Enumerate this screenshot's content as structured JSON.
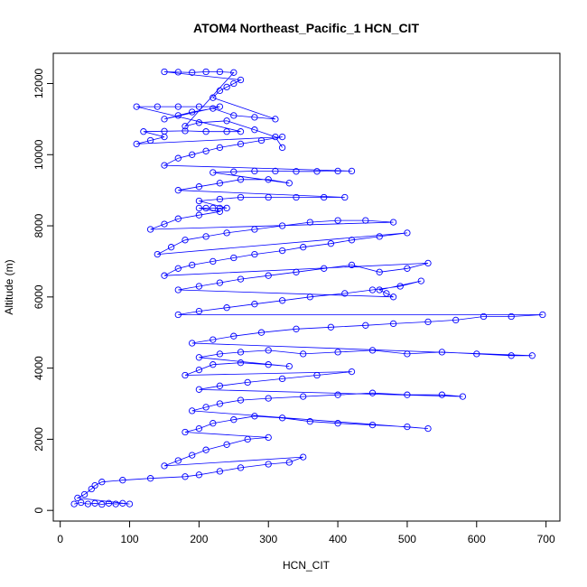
{
  "chart_data": {
    "type": "scatter",
    "title": "ATOM4 Northeast_Pacific_1 HCN_CIT",
    "xlabel": "HCN_CIT",
    "ylabel": "Altitude (m)",
    "xlim": [
      -10,
      720
    ],
    "ylim": [
      -300,
      12850
    ],
    "xticks": [
      0,
      100,
      200,
      300,
      400,
      500,
      600,
      700
    ],
    "yticks": [
      0,
      2000,
      4000,
      6000,
      8000,
      10000,
      12000
    ],
    "grid": false,
    "legend": "none",
    "colors": {
      "series": "#0000ff",
      "axis": "#000000",
      "background": "#ffffff"
    },
    "series": [
      {
        "marker": "open-circle",
        "line": true,
        "points": [
          [
            20,
            180
          ],
          [
            30,
            220
          ],
          [
            40,
            180
          ],
          [
            50,
            200
          ],
          [
            60,
            170
          ],
          [
            70,
            200
          ],
          [
            80,
            180
          ],
          [
            90,
            200
          ],
          [
            100,
            180
          ],
          [
            25,
            350
          ],
          [
            35,
            450
          ],
          [
            45,
            600
          ],
          [
            50,
            700
          ],
          [
            60,
            800
          ],
          [
            90,
            850
          ],
          [
            130,
            900
          ],
          [
            180,
            950
          ],
          [
            200,
            1000
          ],
          [
            230,
            1100
          ],
          [
            260,
            1200
          ],
          [
            300,
            1300
          ],
          [
            330,
            1350
          ],
          [
            350,
            1500
          ],
          [
            150,
            1250
          ],
          [
            170,
            1400
          ],
          [
            190,
            1550
          ],
          [
            210,
            1700
          ],
          [
            240,
            1850
          ],
          [
            270,
            2000
          ],
          [
            300,
            2050
          ],
          [
            180,
            2200
          ],
          [
            200,
            2300
          ],
          [
            220,
            2450
          ],
          [
            250,
            2550
          ],
          [
            280,
            2650
          ],
          [
            320,
            2600
          ],
          [
            360,
            2500
          ],
          [
            400,
            2450
          ],
          [
            450,
            2400
          ],
          [
            500,
            2350
          ],
          [
            530,
            2300
          ],
          [
            190,
            2800
          ],
          [
            210,
            2900
          ],
          [
            230,
            3000
          ],
          [
            260,
            3100
          ],
          [
            300,
            3150
          ],
          [
            350,
            3200
          ],
          [
            400,
            3250
          ],
          [
            450,
            3300
          ],
          [
            500,
            3250
          ],
          [
            550,
            3250
          ],
          [
            580,
            3200
          ],
          [
            200,
            3400
          ],
          [
            230,
            3500
          ],
          [
            270,
            3600
          ],
          [
            320,
            3700
          ],
          [
            370,
            3800
          ],
          [
            420,
            3900
          ],
          [
            180,
            3800
          ],
          [
            200,
            3950
          ],
          [
            220,
            4100
          ],
          [
            260,
            4150
          ],
          [
            300,
            4100
          ],
          [
            330,
            4050
          ],
          [
            200,
            4300
          ],
          [
            230,
            4400
          ],
          [
            260,
            4450
          ],
          [
            300,
            4500
          ],
          [
            350,
            4400
          ],
          [
            400,
            4450
          ],
          [
            450,
            4500
          ],
          [
            500,
            4400
          ],
          [
            550,
            4450
          ],
          [
            600,
            4400
          ],
          [
            650,
            4350
          ],
          [
            680,
            4350
          ],
          [
            190,
            4700
          ],
          [
            220,
            4800
          ],
          [
            250,
            4900
          ],
          [
            290,
            5000
          ],
          [
            340,
            5100
          ],
          [
            390,
            5150
          ],
          [
            440,
            5200
          ],
          [
            480,
            5250
          ],
          [
            530,
            5300
          ],
          [
            570,
            5350
          ],
          [
            610,
            5450
          ],
          [
            650,
            5450
          ],
          [
            695,
            5500
          ],
          [
            170,
            5500
          ],
          [
            200,
            5600
          ],
          [
            240,
            5700
          ],
          [
            280,
            5800
          ],
          [
            320,
            5900
          ],
          [
            360,
            6000
          ],
          [
            410,
            6100
          ],
          [
            450,
            6200
          ],
          [
            490,
            6300
          ],
          [
            520,
            6450
          ],
          [
            460,
            6200
          ],
          [
            470,
            6100
          ],
          [
            480,
            6000
          ],
          [
            170,
            6200
          ],
          [
            200,
            6300
          ],
          [
            230,
            6400
          ],
          [
            260,
            6500
          ],
          [
            300,
            6600
          ],
          [
            340,
            6700
          ],
          [
            380,
            6800
          ],
          [
            420,
            6900
          ],
          [
            460,
            6700
          ],
          [
            500,
            6800
          ],
          [
            530,
            6950
          ],
          [
            150,
            6600
          ],
          [
            170,
            6800
          ],
          [
            190,
            6900
          ],
          [
            220,
            7000
          ],
          [
            250,
            7100
          ],
          [
            280,
            7200
          ],
          [
            320,
            7300
          ],
          [
            350,
            7400
          ],
          [
            390,
            7500
          ],
          [
            420,
            7600
          ],
          [
            460,
            7700
          ],
          [
            500,
            7800
          ],
          [
            140,
            7200
          ],
          [
            160,
            7400
          ],
          [
            180,
            7600
          ],
          [
            210,
            7700
          ],
          [
            240,
            7800
          ],
          [
            280,
            7900
          ],
          [
            320,
            8000
          ],
          [
            360,
            8100
          ],
          [
            400,
            8150
          ],
          [
            440,
            8150
          ],
          [
            480,
            8100
          ],
          [
            130,
            7900
          ],
          [
            150,
            8050
          ],
          [
            170,
            8200
          ],
          [
            200,
            8300
          ],
          [
            230,
            8400
          ],
          [
            200,
            8500
          ],
          [
            210,
            8500
          ],
          [
            220,
            8500
          ],
          [
            230,
            8500
          ],
          [
            240,
            8500
          ],
          [
            200,
            8700
          ],
          [
            230,
            8750
          ],
          [
            260,
            8800
          ],
          [
            300,
            8800
          ],
          [
            340,
            8800
          ],
          [
            380,
            8800
          ],
          [
            410,
            8800
          ],
          [
            170,
            9000
          ],
          [
            200,
            9100
          ],
          [
            230,
            9200
          ],
          [
            260,
            9300
          ],
          [
            300,
            9300
          ],
          [
            330,
            9200
          ],
          [
            220,
            9500
          ],
          [
            250,
            9520
          ],
          [
            280,
            9540
          ],
          [
            310,
            9540
          ],
          [
            340,
            9530
          ],
          [
            370,
            9530
          ],
          [
            400,
            9540
          ],
          [
            420,
            9540
          ],
          [
            150,
            9700
          ],
          [
            170,
            9900
          ],
          [
            190,
            10000
          ],
          [
            210,
            10100
          ],
          [
            230,
            10200
          ],
          [
            260,
            10300
          ],
          [
            290,
            10400
          ],
          [
            320,
            10500
          ],
          [
            110,
            10300
          ],
          [
            130,
            10400
          ],
          [
            150,
            10500
          ],
          [
            120,
            10650
          ],
          [
            150,
            10660
          ],
          [
            180,
            10670
          ],
          [
            210,
            10650
          ],
          [
            240,
            10650
          ],
          [
            260,
            10650
          ],
          [
            110,
            11350
          ],
          [
            140,
            11350
          ],
          [
            170,
            11350
          ],
          [
            200,
            11350
          ],
          [
            230,
            11350
          ],
          [
            150,
            11000
          ],
          [
            170,
            11100
          ],
          [
            190,
            11200
          ],
          [
            220,
            11300
          ],
          [
            250,
            11100
          ],
          [
            280,
            11050
          ],
          [
            310,
            11000
          ],
          [
            220,
            11600
          ],
          [
            230,
            11800
          ],
          [
            240,
            11900
          ],
          [
            250,
            12000
          ],
          [
            260,
            12100
          ],
          [
            150,
            12330
          ],
          [
            170,
            12320
          ],
          [
            190,
            12310
          ],
          [
            210,
            12330
          ],
          [
            230,
            12330
          ],
          [
            250,
            12310
          ],
          [
            180,
            10800
          ],
          [
            200,
            10900
          ],
          [
            240,
            10950
          ],
          [
            280,
            10700
          ],
          [
            310,
            10500
          ],
          [
            320,
            10200
          ]
        ]
      }
    ]
  }
}
